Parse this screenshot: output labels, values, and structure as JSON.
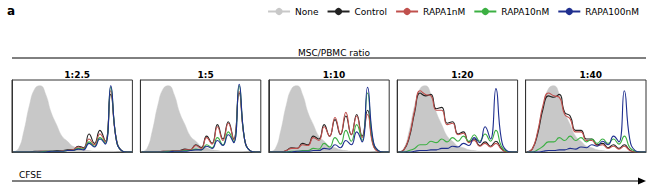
{
  "label": "a",
  "title": "MSC/PBMC ratio",
  "xlabel": "CFSE",
  "legend": "top",
  "chart_data": [
    {
      "type": "line",
      "title": "1:2.5",
      "tick_labels": false,
      "grid": false,
      "xlim": [
        0,
        100
      ],
      "ylim": [
        0,
        100
      ],
      "x": [
        1,
        5.5,
        10,
        14.5,
        19,
        23.5,
        28,
        32.5,
        37,
        41.5,
        46,
        50.5,
        55,
        59.5,
        64,
        68.5,
        73,
        77.5,
        82,
        86.5,
        91,
        95.5,
        100
      ],
      "series": [
        {
          "name": "None",
          "type": "area",
          "color": "#c8c8c8",
          "values": [
            0,
            5,
            30,
            65,
            88,
            92,
            80,
            55,
            38,
            22,
            15,
            8,
            6,
            3,
            2,
            1,
            1,
            1,
            1,
            0.5,
            0,
            0,
            0
          ]
        },
        {
          "name": "Control",
          "type": "line",
          "color": "#222222",
          "values": [
            0,
            0,
            0,
            0,
            1,
            1,
            1,
            1,
            2,
            2,
            3,
            3,
            8,
            6,
            25,
            12,
            30,
            15,
            80,
            20,
            2,
            0,
            0
          ]
        },
        {
          "name": "RAPA1nM",
          "type": "line",
          "color": "#c0504d",
          "values": [
            0,
            0,
            0,
            0,
            0,
            1,
            1,
            1,
            1,
            2,
            2,
            3,
            7,
            5,
            18,
            10,
            25,
            14,
            85,
            18,
            2,
            0,
            0
          ]
        },
        {
          "name": "RAPA10nM",
          "type": "line",
          "color": "#3cb043",
          "values": [
            0,
            0,
            0,
            0,
            0,
            0,
            1,
            1,
            1,
            1,
            2,
            2,
            5,
            4,
            14,
            8,
            20,
            12,
            90,
            18,
            2,
            0,
            0
          ]
        },
        {
          "name": "RAPA100nM",
          "type": "line",
          "color": "#1f2f8f",
          "values": [
            0,
            0,
            0,
            0,
            0,
            0,
            0,
            1,
            1,
            1,
            2,
            2,
            4,
            3,
            12,
            7,
            18,
            11,
            92,
            18,
            2,
            0,
            0
          ]
        }
      ]
    },
    {
      "type": "line",
      "title": "1:5",
      "tick_labels": false,
      "grid": false,
      "xlim": [
        0,
        100
      ],
      "ylim": [
        0,
        100
      ],
      "x": [
        1,
        5.5,
        10,
        14.5,
        19,
        23.5,
        28,
        32.5,
        37,
        41.5,
        46,
        50.5,
        55,
        59.5,
        64,
        68.5,
        73,
        77.5,
        82,
        86.5,
        91,
        95.5,
        100
      ],
      "series": [
        {
          "name": "None",
          "type": "area",
          "color": "#c8c8c8",
          "values": [
            0,
            5,
            30,
            65,
            88,
            92,
            80,
            55,
            38,
            22,
            15,
            8,
            6,
            3,
            2,
            1,
            1,
            1,
            1,
            0.5,
            0,
            0,
            0
          ]
        },
        {
          "name": "Control",
          "type": "line",
          "color": "#222222",
          "values": [
            0,
            0,
            0,
            0,
            1,
            1,
            2,
            2,
            4,
            3,
            10,
            6,
            22,
            12,
            38,
            18,
            42,
            18,
            82,
            18,
            2,
            0,
            0
          ]
        },
        {
          "name": "RAPA1nM",
          "type": "line",
          "color": "#c0504d",
          "values": [
            0,
            0,
            0,
            0,
            1,
            1,
            2,
            2,
            3,
            3,
            9,
            5,
            20,
            11,
            35,
            16,
            40,
            17,
            84,
            18,
            2,
            0,
            0
          ]
        },
        {
          "name": "RAPA10nM",
          "type": "line",
          "color": "#3cb043",
          "values": [
            0,
            0,
            0,
            0,
            0,
            1,
            1,
            1,
            2,
            2,
            4,
            3,
            10,
            6,
            20,
            10,
            28,
            14,
            92,
            18,
            2,
            0,
            0
          ]
        },
        {
          "name": "RAPA100nM",
          "type": "line",
          "color": "#1f2f8f",
          "values": [
            0,
            0,
            0,
            0,
            0,
            0,
            1,
            1,
            1,
            2,
            3,
            3,
            8,
            5,
            16,
            9,
            24,
            13,
            94,
            18,
            2,
            0,
            0
          ]
        }
      ]
    },
    {
      "type": "line",
      "title": "1:10",
      "tick_labels": false,
      "grid": false,
      "xlim": [
        0,
        100
      ],
      "ylim": [
        0,
        100
      ],
      "x": [
        1,
        5.5,
        10,
        14.5,
        19,
        23.5,
        28,
        32.5,
        37,
        41.5,
        46,
        50.5,
        55,
        59.5,
        64,
        68.5,
        73,
        77.5,
        82,
        86.5,
        91,
        95.5,
        100
      ],
      "series": [
        {
          "name": "None",
          "type": "area",
          "color": "#c8c8c8",
          "values": [
            0,
            5,
            30,
            65,
            88,
            92,
            80,
            55,
            38,
            22,
            15,
            8,
            6,
            3,
            2,
            1,
            1,
            1,
            1,
            0.5,
            0,
            0,
            0
          ]
        },
        {
          "name": "Control",
          "type": "line",
          "color": "#222222",
          "values": [
            0,
            0,
            0,
            2,
            6,
            5,
            12,
            10,
            22,
            18,
            38,
            22,
            45,
            24,
            50,
            24,
            52,
            22,
            58,
            12,
            1,
            0,
            0
          ]
        },
        {
          "name": "RAPA1nM",
          "type": "line",
          "color": "#c0504d",
          "values": [
            0,
            0,
            0,
            2,
            5,
            5,
            10,
            9,
            20,
            16,
            35,
            22,
            48,
            25,
            55,
            24,
            50,
            20,
            52,
            10,
            1,
            0,
            0
          ]
        },
        {
          "name": "RAPA10nM",
          "type": "line",
          "color": "#3cb043",
          "values": [
            0,
            0,
            0,
            0,
            1,
            1,
            2,
            2,
            5,
            4,
            12,
            7,
            20,
            11,
            30,
            15,
            38,
            16,
            82,
            16,
            2,
            0,
            0
          ]
        },
        {
          "name": "RAPA100nM",
          "type": "line",
          "color": "#1f2f8f",
          "values": [
            0,
            0,
            0,
            0,
            0,
            1,
            1,
            1,
            2,
            2,
            5,
            4,
            10,
            6,
            16,
            10,
            28,
            14,
            90,
            18,
            2,
            0,
            0
          ]
        }
      ]
    },
    {
      "type": "line",
      "title": "1:20",
      "tick_labels": false,
      "grid": false,
      "xlim": [
        0,
        100
      ],
      "ylim": [
        0,
        100
      ],
      "x": [
        1,
        5.5,
        10,
        14.5,
        19,
        23.5,
        28,
        32.5,
        37,
        41.5,
        46,
        50.5,
        55,
        59.5,
        64,
        68.5,
        73,
        77.5,
        82,
        86.5,
        91,
        95.5,
        100
      ],
      "series": [
        {
          "name": "None",
          "type": "area",
          "color": "#c8c8c8",
          "values": [
            0,
            5,
            30,
            65,
            88,
            92,
            80,
            55,
            38,
            22,
            15,
            8,
            6,
            3,
            2,
            1,
            1,
            1,
            1,
            0.5,
            0,
            0,
            0
          ]
        },
        {
          "name": "Control",
          "type": "line",
          "color": "#222222",
          "values": [
            0,
            3,
            20,
            55,
            82,
            78,
            80,
            60,
            62,
            40,
            42,
            25,
            28,
            14,
            18,
            9,
            14,
            8,
            15,
            5,
            0,
            0,
            0
          ]
        },
        {
          "name": "RAPA1nM",
          "type": "line",
          "color": "#c0504d",
          "values": [
            0,
            3,
            22,
            58,
            85,
            80,
            78,
            58,
            58,
            38,
            40,
            24,
            26,
            13,
            16,
            8,
            12,
            7,
            12,
            4,
            0,
            0,
            0
          ]
        },
        {
          "name": "RAPA10nM",
          "type": "line",
          "color": "#3cb043",
          "values": [
            0,
            0,
            2,
            5,
            10,
            10,
            15,
            13,
            18,
            14,
            20,
            15,
            22,
            15,
            24,
            15,
            25,
            15,
            30,
            8,
            1,
            0,
            0
          ]
        },
        {
          "name": "RAPA100nM",
          "type": "line",
          "color": "#1f2f8f",
          "values": [
            0,
            0,
            0,
            1,
            2,
            2,
            3,
            3,
            5,
            5,
            8,
            7,
            12,
            9,
            20,
            13,
            35,
            18,
            88,
            18,
            2,
            0,
            0
          ]
        }
      ]
    },
    {
      "type": "line",
      "title": "1:40",
      "tick_labels": false,
      "grid": false,
      "xlim": [
        0,
        100
      ],
      "ylim": [
        0,
        100
      ],
      "x": [
        1,
        5.5,
        10,
        14.5,
        19,
        23.5,
        28,
        32.5,
        37,
        41.5,
        46,
        50.5,
        55,
        59.5,
        64,
        68.5,
        73,
        77.5,
        82,
        86.5,
        91,
        95.5,
        100
      ],
      "series": [
        {
          "name": "None",
          "type": "area",
          "color": "#c8c8c8",
          "values": [
            0,
            5,
            30,
            65,
            88,
            92,
            80,
            55,
            38,
            22,
            15,
            8,
            6,
            3,
            2,
            1,
            1,
            1,
            1,
            0.5,
            0,
            0,
            0
          ]
        },
        {
          "name": "Control",
          "type": "line",
          "color": "#222222",
          "values": [
            0,
            4,
            25,
            60,
            78,
            76,
            80,
            55,
            50,
            30,
            30,
            18,
            18,
            10,
            12,
            6,
            10,
            5,
            10,
            3,
            0,
            0,
            0
          ]
        },
        {
          "name": "RAPA1nM",
          "type": "line",
          "color": "#c0504d",
          "values": [
            0,
            4,
            28,
            65,
            82,
            78,
            76,
            52,
            46,
            28,
            28,
            16,
            16,
            9,
            10,
            5,
            8,
            4,
            8,
            2,
            0,
            0,
            0
          ]
        },
        {
          "name": "RAPA10nM",
          "type": "line",
          "color": "#3cb043",
          "values": [
            0,
            0,
            3,
            8,
            14,
            14,
            20,
            16,
            22,
            16,
            20,
            14,
            18,
            12,
            18,
            12,
            18,
            11,
            22,
            6,
            1,
            0,
            0
          ]
        },
        {
          "name": "RAPA100nM",
          "type": "line",
          "color": "#1f2f8f",
          "values": [
            0,
            0,
            0,
            1,
            2,
            2,
            3,
            3,
            5,
            4,
            7,
            6,
            10,
            8,
            15,
            10,
            22,
            14,
            85,
            18,
            2,
            0,
            0
          ]
        }
      ]
    }
  ]
}
